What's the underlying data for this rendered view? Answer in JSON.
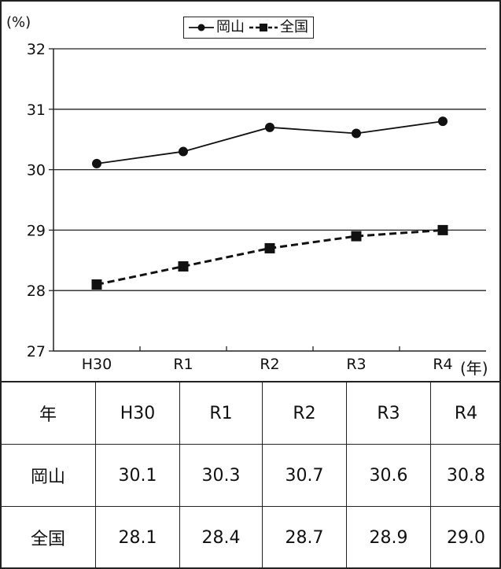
{
  "chart_data": {
    "type": "line",
    "ylabel": "(%)",
    "xunit": "(年)",
    "categories": [
      "H30",
      "R1",
      "R2",
      "R3",
      "R4"
    ],
    "ylim": [
      27,
      32
    ],
    "yticks": [
      "27",
      "28",
      "29",
      "30",
      "31",
      "32"
    ],
    "grid": true,
    "legend_position": "top-center",
    "series": [
      {
        "name": "岡山",
        "values": [
          30.1,
          30.3,
          30.7,
          30.6,
          30.8
        ],
        "marker": "circle",
        "line": "solid",
        "color": "#111111"
      },
      {
        "name": "全国",
        "values": [
          28.1,
          28.4,
          28.7,
          28.9,
          29.0
        ],
        "marker": "square",
        "line": "dashed",
        "color": "#111111"
      }
    ]
  },
  "table": {
    "header": [
      "年",
      "H30",
      "R1",
      "R2",
      "R3",
      "R4"
    ],
    "rows": [
      [
        "岡山",
        "30.1",
        "30.3",
        "30.7",
        "30.6",
        "30.8"
      ],
      [
        "全国",
        "28.1",
        "28.4",
        "28.7",
        "28.9",
        "29.0"
      ]
    ]
  }
}
